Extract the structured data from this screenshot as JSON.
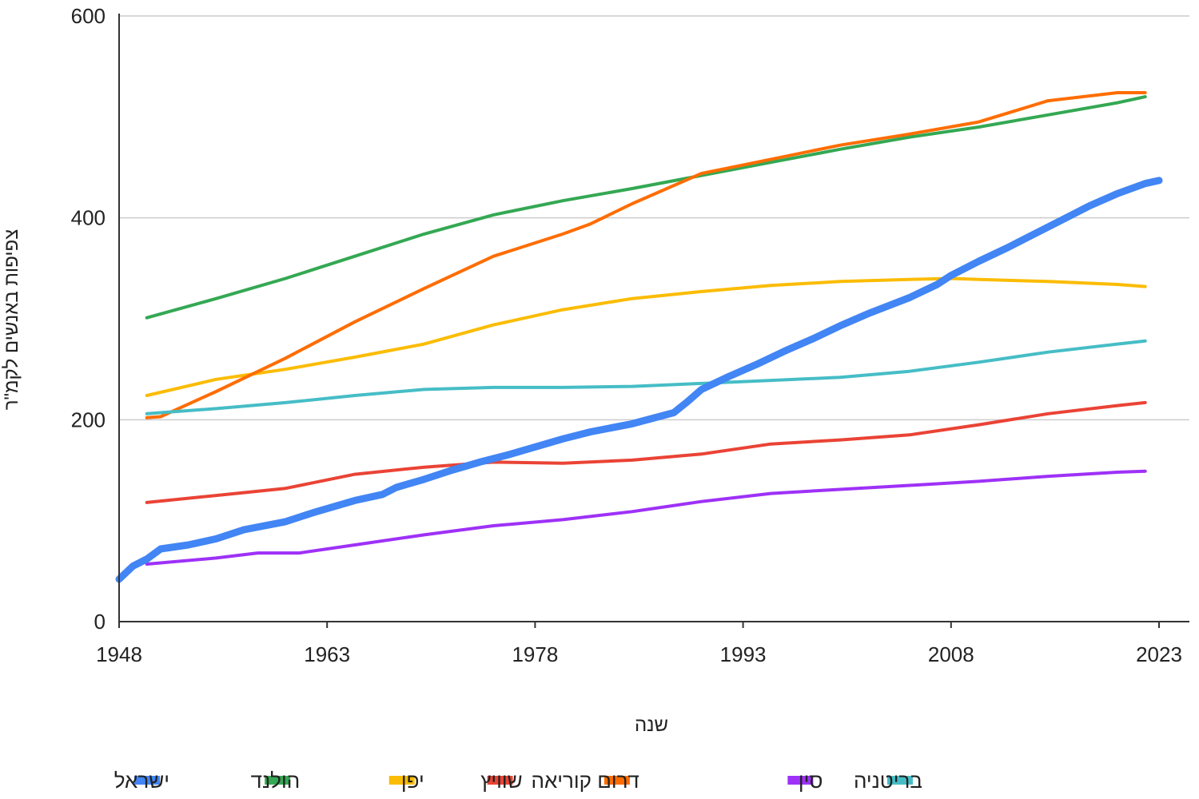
{
  "chart_data": {
    "type": "line",
    "xlabel": "שנה",
    "ylabel": "צפיפות באנשים לקמ\"ר",
    "xlim": [
      1948,
      2025
    ],
    "ylim": [
      0,
      600
    ],
    "x_ticks": [
      "1948",
      "1963",
      "1978",
      "1993",
      "2008",
      "2023"
    ],
    "y_ticks": [
      "0",
      "200",
      "400",
      "600"
    ],
    "grid": "horizontal",
    "legend_position": "bottom",
    "series": [
      {
        "name": "ישראל",
        "color": "#4285f4",
        "x": [
          1948,
          1949,
          1950,
          1951,
          1953,
          1955,
          1957,
          1960,
          1962,
          1965,
          1967,
          1968,
          1970,
          1972,
          1974,
          1976,
          1978,
          1980,
          1982,
          1985,
          1988,
          1989,
          1990,
          1992,
          1994,
          1996,
          1998,
          2000,
          2002,
          2005,
          2007,
          2008,
          2010,
          2012,
          2014,
          2016,
          2018,
          2020,
          2022,
          2023
        ],
        "values": [
          42,
          55,
          62,
          72,
          76,
          82,
          91,
          99,
          108,
          120,
          126,
          133,
          141,
          150,
          158,
          165,
          173,
          181,
          188,
          196,
          207,
          218,
          230,
          243,
          255,
          268,
          280,
          293,
          305,
          321,
          334,
          343,
          357,
          370,
          384,
          398,
          412,
          424,
          434,
          437
        ]
      },
      {
        "name": "הולנד",
        "color": "#34a853",
        "x": [
          1950,
          1955,
          1960,
          1965,
          1970,
          1975,
          1980,
          1985,
          1990,
          1995,
          2000,
          2005,
          2010,
          2015,
          2020,
          2022
        ],
        "values": [
          301,
          320,
          340,
          362,
          384,
          403,
          417,
          429,
          442,
          455,
          468,
          480,
          490,
          502,
          514,
          520
        ]
      },
      {
        "name": "יפן",
        "color": "#fbbc04",
        "x": [
          1950,
          1955,
          1960,
          1965,
          1970,
          1975,
          1980,
          1985,
          1990,
          1995,
          2000,
          2005,
          2008,
          2010,
          2015,
          2020,
          2022
        ],
        "values": [
          224,
          240,
          250,
          262,
          275,
          294,
          309,
          320,
          327,
          333,
          337,
          339,
          340,
          339,
          337,
          334,
          332
        ]
      },
      {
        "name": "שוויץ",
        "color": "#ea4335",
        "x": [
          1950,
          1955,
          1960,
          1965,
          1970,
          1975,
          1980,
          1985,
          1990,
          1995,
          2000,
          2005,
          2010,
          2015,
          2020,
          2022
        ],
        "values": [
          118,
          125,
          132,
          146,
          153,
          158,
          157,
          160,
          166,
          176,
          180,
          185,
          195,
          206,
          214,
          217
        ]
      },
      {
        "name": "דרום קוריאה",
        "color": "#ff6d01",
        "x": [
          1950,
          1951,
          1955,
          1960,
          1965,
          1970,
          1975,
          1980,
          1982,
          1985,
          1990,
          1995,
          2000,
          2005,
          2010,
          2015,
          2020,
          2022
        ],
        "values": [
          202,
          203,
          228,
          261,
          297,
          330,
          362,
          384,
          394,
          414,
          444,
          458,
          472,
          483,
          495,
          516,
          524,
          524
        ]
      },
      {
        "name": "סין",
        "color": "#9e31f7",
        "x": [
          1950,
          1955,
          1958,
          1961,
          1965,
          1970,
          1975,
          1980,
          1985,
          1990,
          1995,
          2000,
          2005,
          2010,
          2015,
          2020,
          2022
        ],
        "values": [
          57,
          63,
          68,
          68,
          76,
          86,
          95,
          101,
          109,
          119,
          127,
          131,
          135,
          139,
          144,
          148,
          149
        ]
      },
      {
        "name": "בריטניה",
        "color": "#46bdc6",
        "x": [
          1950,
          1955,
          1960,
          1965,
          1970,
          1975,
          1980,
          1985,
          1990,
          1995,
          2000,
          2005,
          2010,
          2015,
          2020,
          2022
        ],
        "values": [
          206,
          211,
          217,
          224,
          230,
          232,
          232,
          233,
          236,
          239,
          242,
          248,
          257,
          267,
          275,
          278
        ]
      }
    ]
  }
}
